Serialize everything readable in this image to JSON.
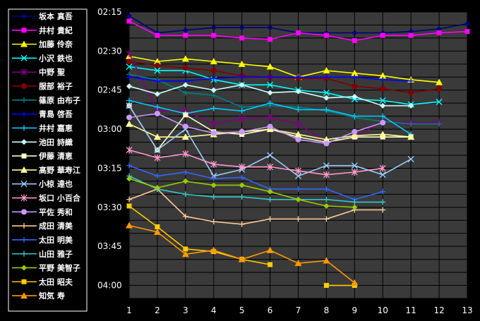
{
  "chart_data": {
    "type": "line",
    "title": "",
    "xlabel": "",
    "ylabel": "",
    "x": [
      1,
      2,
      3,
      4,
      5,
      6,
      7,
      8,
      9,
      10,
      11,
      12,
      13
    ],
    "x_tick_labels": [
      "1",
      "2",
      "3",
      "4",
      "5",
      "6",
      "7",
      "8",
      "9",
      "10",
      "11",
      "12",
      "13"
    ],
    "y_tick_labels": [
      "02:15",
      "02:30",
      "02:45",
      "03:00",
      "03:15",
      "03:30",
      "03:45",
      "04:00"
    ],
    "ylim_minutes": [
      135,
      245
    ],
    "y_inverted": true,
    "grid": true,
    "legend_position": "left",
    "series": [
      {
        "name": "坂本 真吾",
        "color": "#000080",
        "marker": "diamond",
        "values": [
          136.5,
          143.0,
          142.0,
          141.0,
          141.0,
          141.0,
          143.0,
          143.0,
          143.0,
          143.0,
          142.5,
          141.5,
          139.5
        ]
      },
      {
        "name": "井村 貴紀",
        "color": "#ff00ff",
        "marker": "square",
        "values": [
          138.5,
          144.0,
          144.0,
          144.0,
          145.0,
          145.5,
          143.0,
          144.0,
          146.0,
          144.0,
          144.0,
          143.0,
          142.5
        ]
      },
      {
        "name": "加藤 伶奈",
        "color": "#ffff00",
        "marker": "triangle",
        "values": [
          152.0,
          154.0,
          153.0,
          154.0,
          155.0,
          156.0,
          160.0,
          157.5,
          158.5,
          159.5,
          161.0,
          162.0,
          null
        ]
      },
      {
        "name": "小沢 鉄也",
        "color": "#00ffff",
        "marker": "x",
        "values": [
          156.0,
          157.5,
          157.5,
          161.0,
          163.0,
          163.0,
          165.0,
          166.0,
          168.5,
          169.0,
          170.5,
          169.5,
          null
        ]
      },
      {
        "name": "中野 聖",
        "color": "#800080",
        "marker": "star",
        "values": [
          151.0,
          173.0,
          173.0,
          178.0,
          176.0,
          175.5,
          178.0,
          185.0,
          183.0,
          177.0,
          177.5,
          177.5,
          null
        ]
      },
      {
        "name": "服部 裕子",
        "color": "#800000",
        "marker": "circle",
        "values": [
          154.0,
          155.5,
          156.5,
          157.5,
          159.5,
          160.0,
          160.5,
          160.5,
          163.5,
          164.5,
          166.0,
          164.5,
          null
        ]
      },
      {
        "name": "篠原 由布子",
        "color": "#008080",
        "marker": "plus",
        "values": [
          159.0,
          161.0,
          166.0,
          167.0,
          171.5,
          171.0,
          171.5,
          173.0,
          175.5,
          177.0,
          178.0,
          178.0,
          null
        ]
      },
      {
        "name": "青島 啓吾",
        "color": "#0000ff",
        "marker": "plus",
        "values": [
          160.0,
          161.5,
          161.5,
          160.5,
          160.0,
          160.0,
          160.0,
          160.0,
          160.0,
          161.0,
          161.5,
          null,
          null
        ]
      },
      {
        "name": "井村 嘉恵",
        "color": "#00ccff",
        "marker": "plus",
        "values": [
          169.0,
          171.5,
          174.0,
          172.0,
          173.0,
          170.0,
          172.5,
          172.5,
          175.0,
          175.0,
          182.0,
          null,
          null
        ]
      },
      {
        "name": "池田 詩織",
        "color": "#ccffff",
        "marker": "diamond",
        "values": [
          163.5,
          166.5,
          163.0,
          165.0,
          163.0,
          166.0,
          165.5,
          168.0,
          167.5,
          171.0,
          171.0,
          null,
          null
        ]
      },
      {
        "name": "伊藤 清恵",
        "color": "#ffffcc",
        "marker": "square",
        "values": [
          171.0,
          188.0,
          174.5,
          181.0,
          182.0,
          180.0,
          183.0,
          185.0,
          183.0,
          183.0,
          183.0,
          null,
          null
        ]
      },
      {
        "name": "高野 華寿江",
        "color": "#ffff99",
        "marker": "triangle",
        "values": [
          178.0,
          183.0,
          183.0,
          182.0,
          181.0,
          180.0,
          182.0,
          184.0,
          182.5,
          182.0,
          183.0,
          null,
          null
        ]
      },
      {
        "name": "小椋 達也",
        "color": "#99ccff",
        "marker": "x",
        "values": [
          171.0,
          188.0,
          180.0,
          198.0,
          195.5,
          190.0,
          198.0,
          194.0,
          194.0,
          197.5,
          191.5,
          null,
          null
        ]
      },
      {
        "name": "坂口 小百合",
        "color": "#ff99cc",
        "marker": "star",
        "values": [
          188.0,
          191.0,
          189.5,
          193.5,
          194.5,
          194.5,
          196.0,
          197.5,
          196.5,
          195.0,
          null,
          null,
          null
        ]
      },
      {
        "name": "平佐 秀和",
        "color": "#cc99ff",
        "marker": "circle",
        "values": [
          175.5,
          174.0,
          179.0,
          181.5,
          181.0,
          179.0,
          184.0,
          185.5,
          181.0,
          177.5,
          null,
          null,
          null
        ]
      },
      {
        "name": "成田 清美",
        "color": "#ffcc99",
        "marker": "plus",
        "values": [
          207.0,
          203.0,
          213.5,
          215.5,
          216.5,
          214.5,
          214.5,
          214.5,
          211.0,
          211.0,
          null,
          null,
          null
        ]
      },
      {
        "name": "太田 明美",
        "color": "#3366ff",
        "marker": "plus",
        "values": [
          194.0,
          198.0,
          196.5,
          199.0,
          198.5,
          203.0,
          203.0,
          203.0,
          207.0,
          204.0,
          null,
          null,
          null
        ]
      },
      {
        "name": "山田 雅子",
        "color": "#33cccc",
        "marker": "plus",
        "values": [
          198.0,
          203.0,
          205.0,
          206.0,
          206.0,
          207.0,
          207.0,
          207.0,
          208.0,
          208.0,
          null,
          null,
          null
        ]
      },
      {
        "name": "平野 美智子",
        "color": "#99cc00",
        "marker": "diamond",
        "values": [
          199.0,
          202.5,
          200.0,
          201.5,
          201.5,
          204.0,
          207.0,
          209.5,
          210.0,
          null,
          null,
          null,
          null
        ]
      },
      {
        "name": "太田 昭夫",
        "color": "#ffcc00",
        "marker": "square",
        "values": [
          209.5,
          217.5,
          226.0,
          227.0,
          230.0,
          232.0,
          null,
          240.0,
          240.0,
          null,
          null,
          null,
          null
        ]
      },
      {
        "name": "知気 寿",
        "color": "#ff9900",
        "marker": "triangle",
        "values": [
          217.0,
          219.5,
          228.0,
          226.5,
          230.0,
          226.5,
          231.5,
          230.5,
          239.0,
          null,
          null,
          null,
          null
        ]
      }
    ]
  }
}
